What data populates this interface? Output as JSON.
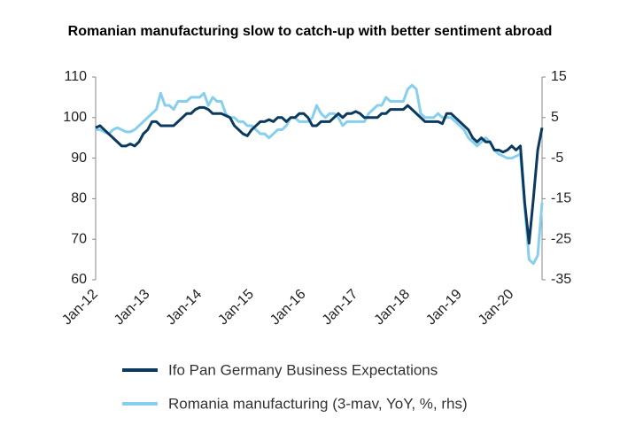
{
  "chart_data": {
    "type": "line",
    "title": "Romanian manufacturing slow to catch-up with better sentiment abroad",
    "categories": [
      "Jan-12",
      null,
      null,
      null,
      null,
      null,
      null,
      null,
      null,
      null,
      null,
      null,
      "Jan-13",
      null,
      null,
      null,
      null,
      null,
      null,
      null,
      null,
      null,
      null,
      null,
      "Jan-14",
      null,
      null,
      null,
      null,
      null,
      null,
      null,
      null,
      null,
      null,
      null,
      "Jan-15",
      null,
      null,
      null,
      null,
      null,
      null,
      null,
      null,
      null,
      null,
      null,
      "Jan-16",
      null,
      null,
      null,
      null,
      null,
      null,
      null,
      null,
      null,
      null,
      null,
      "Jan-17",
      null,
      null,
      null,
      null,
      null,
      null,
      null,
      null,
      null,
      null,
      null,
      "Jan-18",
      null,
      null,
      null,
      null,
      null,
      null,
      null,
      null,
      null,
      null,
      null,
      "Jan-19",
      null,
      null,
      null,
      null,
      null,
      null,
      null,
      null,
      null,
      null,
      null,
      "Jan-20",
      null,
      null,
      null,
      null,
      null,
      null,
      null
    ],
    "ylim": [
      60,
      110
    ],
    "yticks": [
      60,
      70,
      80,
      90,
      100,
      110
    ],
    "y2lim": [
      -35,
      15
    ],
    "y2ticks": [
      -35,
      -25,
      -15,
      -5,
      5,
      15
    ],
    "series": [
      {
        "name": "Ifo Pan Germany Business Expectations",
        "color": "#0b3a5e",
        "values": [
          97.5,
          98,
          97,
          96,
          95,
          94,
          93,
          93,
          93.5,
          93,
          94,
          96,
          97,
          99,
          99,
          98,
          98,
          98,
          98,
          99,
          100,
          101,
          101,
          102,
          102.5,
          102.5,
          102,
          101,
          101,
          101,
          100.5,
          100,
          98,
          97,
          96,
          95.5,
          97,
          98,
          99,
          99,
          99.5,
          99,
          100,
          100,
          99,
          100,
          100,
          101,
          101,
          100,
          98,
          98,
          99,
          99,
          99,
          100,
          101,
          100,
          101,
          101,
          101.5,
          101,
          100,
          100,
          100,
          100,
          101,
          101,
          102,
          102,
          102,
          102,
          103,
          102,
          101,
          100,
          99,
          99,
          99,
          99,
          98.5,
          101,
          101,
          100,
          99,
          98,
          97,
          95,
          94,
          95,
          94,
          94,
          92,
          92,
          91.5,
          92,
          93,
          92,
          93,
          79,
          69,
          80,
          92,
          97.5
        ]
      },
      {
        "name": "Romania manufacturing (3-mav, YoY, %, rhs)",
        "color": "#87cfee",
        "axis": "y2",
        "values": [
          2,
          2,
          1.5,
          1,
          2,
          2.5,
          2,
          1.5,
          1.5,
          2,
          3,
          4,
          5,
          6,
          7,
          11,
          8,
          8,
          7,
          9,
          9,
          9,
          10,
          10,
          10,
          11,
          8,
          10,
          9,
          9,
          6,
          5,
          5,
          4,
          4,
          3,
          3,
          2,
          1,
          1,
          0,
          1,
          2,
          2,
          3,
          5,
          5,
          4,
          4,
          4,
          5,
          8,
          6,
          5,
          6,
          6,
          5,
          3,
          4,
          4,
          4,
          4,
          4,
          6,
          7,
          8,
          8,
          10,
          9,
          9,
          9,
          9,
          12,
          13,
          12,
          6,
          5,
          5,
          5,
          6,
          5,
          5,
          5,
          4,
          3,
          2,
          0,
          -1,
          -2,
          -1,
          0,
          -1,
          -3,
          -4,
          -4.5,
          -5,
          -5,
          -4.5,
          -4,
          -17,
          -30,
          -31,
          -29,
          -16
        ]
      }
    ]
  }
}
